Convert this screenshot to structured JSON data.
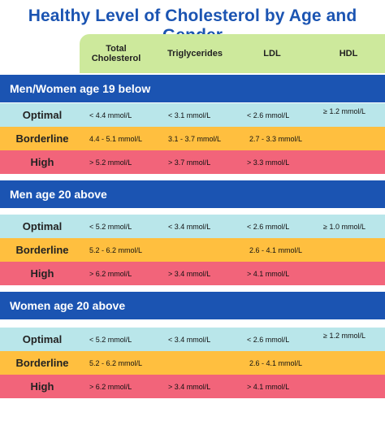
{
  "title": "Healthy Level of Cholesterol by Age and Gender",
  "columns": [
    "Total Cholesterol",
    "Triglycerides",
    "LDL",
    "HDL"
  ],
  "groups": [
    {
      "name": "Men/Women age 19 below",
      "rows": [
        {
          "label": "Optimal",
          "total": "< 4.4 mmol/L",
          "trig": "< 3.1 mmol/L",
          "ldl": "< 2.6 mmol/L",
          "hdl": "≥ 1.2 mmol/L"
        },
        {
          "label": "Borderline",
          "total": "4.4 - 5.1 mmol/L",
          "trig": "3.1 - 3.7 mmol/L",
          "ldl": "2.7 - 3.3 mmol/L",
          "hdl": ""
        },
        {
          "label": "High",
          "total": "> 5.2 mmol/L",
          "trig": "> 3.7 mmol/L",
          "ldl": "> 3.3 mmol/L",
          "hdl": ""
        }
      ]
    },
    {
      "name": "Men age 20 above",
      "rows": [
        {
          "label": "Optimal",
          "total": "< 5.2 mmol/L",
          "trig": "< 3.4 mmol/L",
          "ldl": "< 2.6 mmol/L",
          "hdl": "≥ 1.0 mmol/L"
        },
        {
          "label": "Borderline",
          "total": "5.2 - 6.2 mmol/L",
          "trig": "",
          "ldl": "2.6 - 4.1 mmol/L",
          "hdl": ""
        },
        {
          "label": "High",
          "total": "> 6.2 mmol/L",
          "trig": "> 3.4 mmol/L",
          "ldl": "> 4.1 mmol/L",
          "hdl": ""
        }
      ]
    },
    {
      "name": "Women age 20 above",
      "rows": [
        {
          "label": "Optimal",
          "total": "< 5.2 mmol/L",
          "trig": "< 3.4 mmol/L",
          "ldl": "< 2.6 mmol/L",
          "hdl": "≥ 1.2 mmol/L"
        },
        {
          "label": "Borderline",
          "total": "5.2 - 6.2 mmol/L",
          "trig": "",
          "ldl": "2.6 - 4.1 mmol/L",
          "hdl": ""
        },
        {
          "label": "High",
          "total": "> 6.2 mmol/L",
          "trig": "> 3.4 mmol/L",
          "ldl": "> 4.1 mmol/L",
          "hdl": ""
        }
      ]
    }
  ],
  "colors": {
    "title": "#1b54b2",
    "header": "#cde99c",
    "group_bar": "#1b54b2",
    "optimal": "#b9e6ea",
    "borderline": "#ffbf3f",
    "high": "#f2647a"
  }
}
